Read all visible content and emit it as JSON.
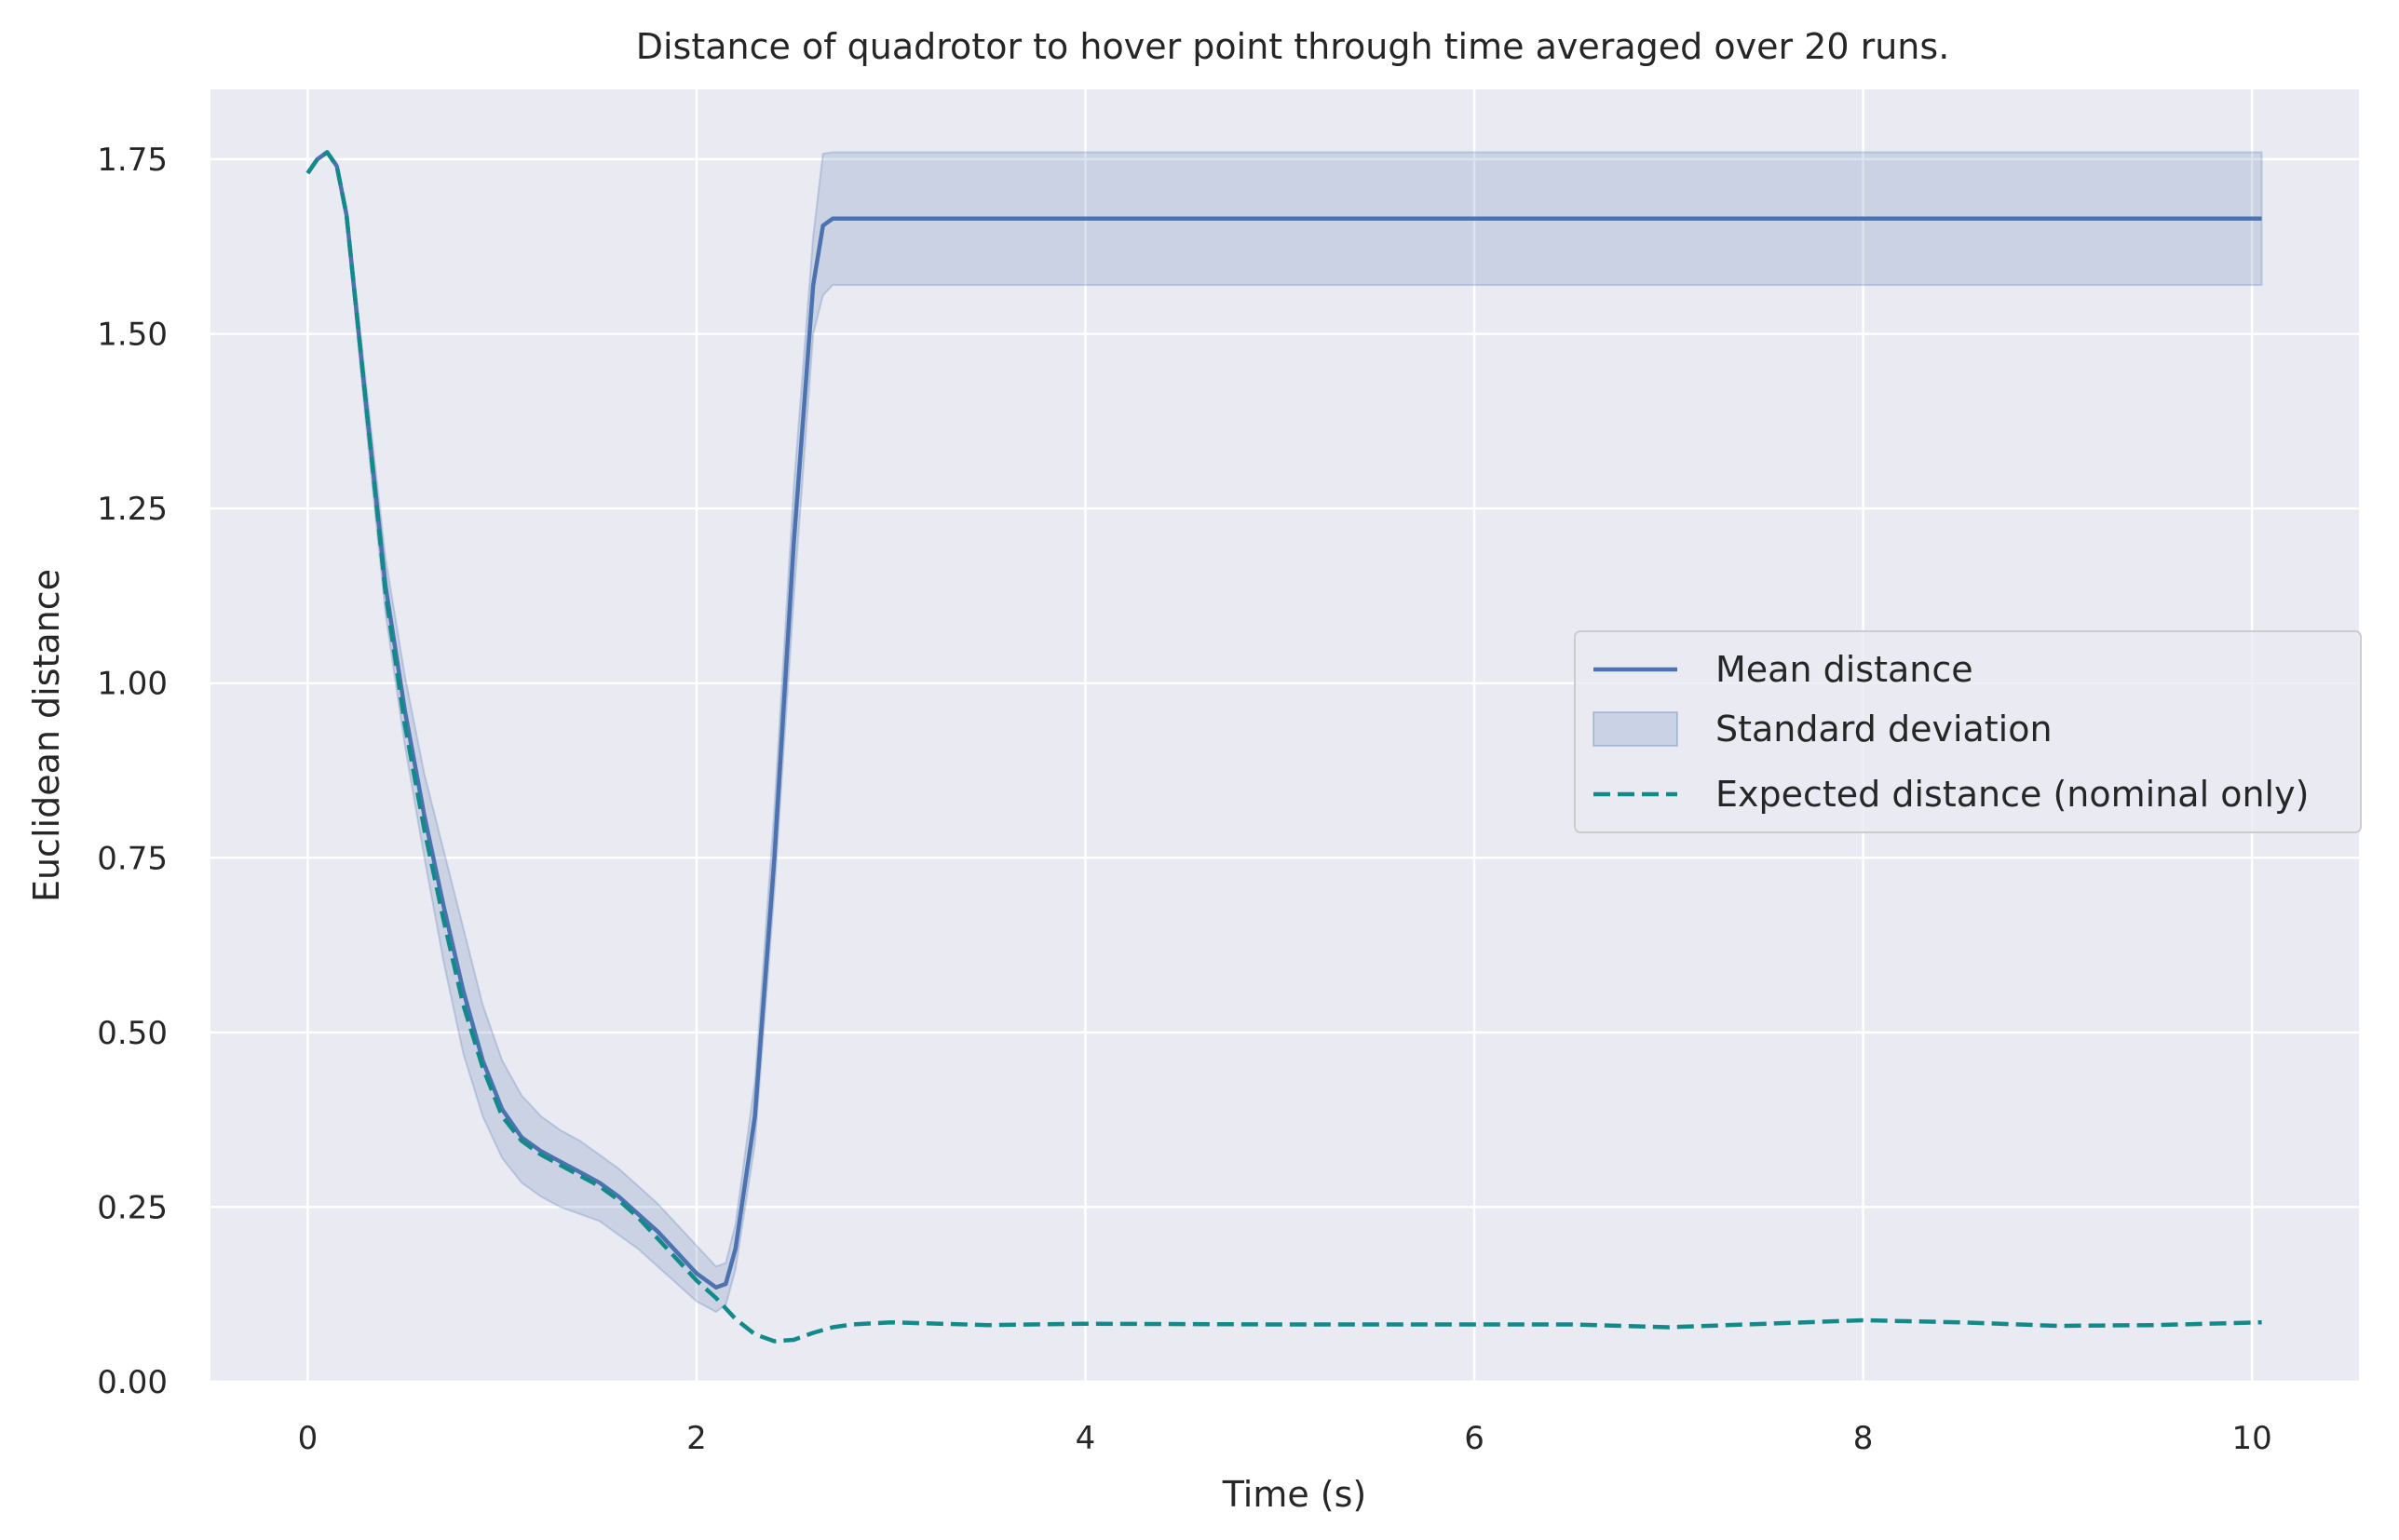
{
  "chart_data": {
    "type": "line",
    "title": "Distance of quadrotor to hover point through time averaged over 20 runs.",
    "xlabel": "Time (s)",
    "ylabel": "Euclidean distance",
    "xlim": [
      -0.5,
      10.55
    ],
    "ylim": [
      0,
      1.85
    ],
    "xticks": [
      0,
      2,
      4,
      6,
      8,
      10
    ],
    "xtick_labels": [
      "0",
      "2",
      "4",
      "6",
      "8",
      "10"
    ],
    "yticks": [
      0,
      0.25,
      0.5,
      0.75,
      1.0,
      1.25,
      1.5,
      1.75
    ],
    "ytick_labels": [
      "0.00",
      "0.25",
      "0.50",
      "0.75",
      "1.00",
      "1.25",
      "1.50",
      "1.75"
    ],
    "grid": true,
    "legend_position": "center-right",
    "colors": {
      "background": "#eaeaf2",
      "grid": "#ffffff",
      "mean": "#4c72b0",
      "band": "#4c72b0",
      "expected": "#138a8a"
    },
    "series": [
      {
        "name": "Mean distance",
        "style": "solid",
        "x": [
          0,
          0.05,
          0.1,
          0.15,
          0.2,
          0.3,
          0.4,
          0.5,
          0.6,
          0.7,
          0.8,
          0.9,
          1.0,
          1.1,
          1.2,
          1.3,
          1.4,
          1.5,
          1.6,
          1.7,
          1.8,
          1.9,
          2.0,
          2.1,
          2.15,
          2.2,
          2.3,
          2.4,
          2.5,
          2.6,
          2.65,
          2.7,
          3,
          4,
          5,
          6,
          7,
          8,
          9,
          10.05
        ],
        "y": [
          1.73,
          1.75,
          1.76,
          1.74,
          1.67,
          1.4,
          1.14,
          0.96,
          0.81,
          0.68,
          0.56,
          0.46,
          0.39,
          0.35,
          0.33,
          0.315,
          0.3,
          0.285,
          0.265,
          0.24,
          0.215,
          0.185,
          0.155,
          0.135,
          0.14,
          0.19,
          0.38,
          0.75,
          1.2,
          1.57,
          1.655,
          1.665,
          1.665,
          1.665,
          1.665,
          1.665,
          1.665,
          1.665,
          1.665,
          1.665
        ]
      },
      {
        "name": "Standard deviation",
        "style": "band",
        "x": [
          0,
          0.05,
          0.1,
          0.15,
          0.2,
          0.3,
          0.4,
          0.5,
          0.6,
          0.7,
          0.8,
          0.9,
          1.0,
          1.1,
          1.2,
          1.3,
          1.4,
          1.5,
          1.6,
          1.7,
          1.8,
          1.9,
          2.0,
          2.1,
          2.15,
          2.2,
          2.3,
          2.4,
          2.5,
          2.6,
          2.65,
          2.7,
          3,
          4,
          5,
          6,
          7,
          8,
          9,
          10.05
        ],
        "lower": [
          1.73,
          1.75,
          1.76,
          1.74,
          1.66,
          1.37,
          1.1,
          0.91,
          0.75,
          0.6,
          0.47,
          0.38,
          0.32,
          0.285,
          0.265,
          0.25,
          0.24,
          0.23,
          0.21,
          0.19,
          0.165,
          0.14,
          0.115,
          0.1,
          0.11,
          0.16,
          0.34,
          0.7,
          1.12,
          1.5,
          1.555,
          1.57,
          1.57,
          1.57,
          1.57,
          1.57,
          1.57,
          1.57,
          1.57,
          1.57
        ],
        "upper": [
          1.73,
          1.75,
          1.76,
          1.745,
          1.68,
          1.43,
          1.18,
          1.01,
          0.87,
          0.76,
          0.65,
          0.54,
          0.46,
          0.41,
          0.38,
          0.36,
          0.345,
          0.325,
          0.305,
          0.28,
          0.255,
          0.225,
          0.195,
          0.165,
          0.17,
          0.225,
          0.43,
          0.82,
          1.28,
          1.64,
          1.758,
          1.76,
          1.76,
          1.76,
          1.76,
          1.76,
          1.76,
          1.76,
          1.76,
          1.76
        ]
      },
      {
        "name": "Expected distance (nominal only)",
        "style": "dashed",
        "x": [
          0,
          0.05,
          0.1,
          0.15,
          0.2,
          0.3,
          0.4,
          0.5,
          0.6,
          0.7,
          0.8,
          0.9,
          1.0,
          1.1,
          1.2,
          1.3,
          1.4,
          1.5,
          1.6,
          1.7,
          1.8,
          1.9,
          2.0,
          2.1,
          2.2,
          2.3,
          2.4,
          2.5,
          2.6,
          2.7,
          2.8,
          3.0,
          3.5,
          4,
          5,
          6,
          6.5,
          7,
          7.5,
          8,
          8.5,
          9,
          9.5,
          10.05
        ],
        "y": [
          1.73,
          1.75,
          1.76,
          1.74,
          1.67,
          1.4,
          1.13,
          0.94,
          0.79,
          0.66,
          0.54,
          0.45,
          0.38,
          0.345,
          0.325,
          0.31,
          0.295,
          0.28,
          0.26,
          0.235,
          0.205,
          0.175,
          0.145,
          0.12,
          0.09,
          0.068,
          0.058,
          0.06,
          0.07,
          0.078,
          0.082,
          0.085,
          0.081,
          0.083,
          0.082,
          0.082,
          0.082,
          0.078,
          0.083,
          0.088,
          0.085,
          0.08,
          0.081,
          0.085
        ]
      }
    ],
    "legend": [
      {
        "label": "Mean distance",
        "kind": "line"
      },
      {
        "label": "Standard deviation",
        "kind": "patch"
      },
      {
        "label": "Expected distance (nominal only)",
        "kind": "dashed"
      }
    ]
  }
}
